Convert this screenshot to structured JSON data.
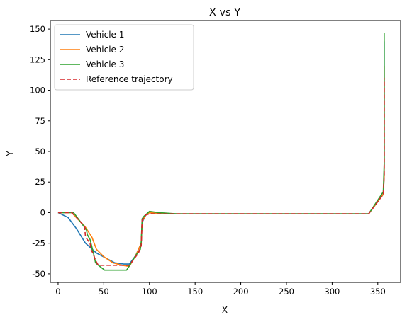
{
  "chart_data": {
    "type": "line",
    "title": "X vs Y",
    "xlabel": "X",
    "ylabel": "Y",
    "xlim": [
      -8.5,
      375
    ],
    "ylim": [
      -57,
      157
    ],
    "xticks": [
      0,
      50,
      100,
      150,
      200,
      250,
      300,
      350
    ],
    "yticks": [
      -50,
      -25,
      0,
      25,
      50,
      75,
      100,
      125,
      150
    ],
    "grid": false,
    "legend_position": "upper-left",
    "series": [
      {
        "name": "Vehicle 1",
        "color": "#1f77b4",
        "dash": "solid",
        "x": [
          0,
          11,
          20,
          30,
          42,
          52,
          62,
          72,
          78,
          85,
          91,
          92,
          96,
          100,
          120,
          130,
          200,
          260,
          340,
          356,
          357,
          357
        ],
        "y": [
          0,
          -4,
          -13,
          -25,
          -33,
          -37,
          -41,
          -42,
          -42,
          -35,
          -25,
          -8,
          -2,
          0,
          -1,
          -1,
          -1,
          -1,
          -1,
          15,
          30,
          140
        ]
      },
      {
        "name": "Vehicle 2",
        "color": "#ff7f0e",
        "dash": "solid",
        "x": [
          0,
          15,
          30,
          37,
          42,
          50,
          60,
          70,
          78,
          85,
          91,
          92,
          96,
          100,
          120,
          130,
          200,
          260,
          340,
          356,
          357,
          357
        ],
        "y": [
          0,
          0,
          -12,
          -20,
          -30,
          -36,
          -41,
          -43,
          -44,
          -35,
          -25,
          -7,
          -2,
          0,
          -1,
          -1,
          -1,
          -1,
          -1,
          15,
          30,
          120
        ]
      },
      {
        "name": "Vehicle 3",
        "color": "#2ca02c",
        "dash": "solid",
        "x": [
          0,
          17,
          31,
          32,
          35,
          37,
          39,
          41,
          44,
          51,
          61,
          71,
          75,
          85,
          90,
          91,
          92,
          94,
          100,
          110,
          130,
          200,
          260,
          340,
          356,
          357,
          357
        ],
        "y": [
          0,
          0,
          -14,
          -18,
          -22,
          -28,
          -34,
          -41,
          -43,
          -47,
          -47,
          -47,
          -47,
          -35,
          -30,
          -24,
          -5,
          -3,
          1,
          0,
          -1,
          -1,
          -1,
          -1,
          17,
          40,
          147
        ]
      },
      {
        "name": "Reference trajectory",
        "color": "#d62728",
        "dash": "dashed",
        "x": [
          0,
          15,
          29,
          30,
          35,
          36,
          38,
          41,
          44,
          51,
          61,
          71,
          78,
          88,
          91,
          92,
          96,
          100,
          130,
          200,
          260,
          340,
          356,
          357,
          357
        ],
        "y": [
          0,
          0,
          -11,
          -20,
          -25,
          -30,
          -33,
          -39,
          -43,
          -43,
          -43,
          -43,
          -43,
          -33,
          -27,
          -6,
          -2,
          -1,
          -1,
          -1,
          -1,
          -1,
          15,
          30,
          110
        ]
      }
    ]
  }
}
